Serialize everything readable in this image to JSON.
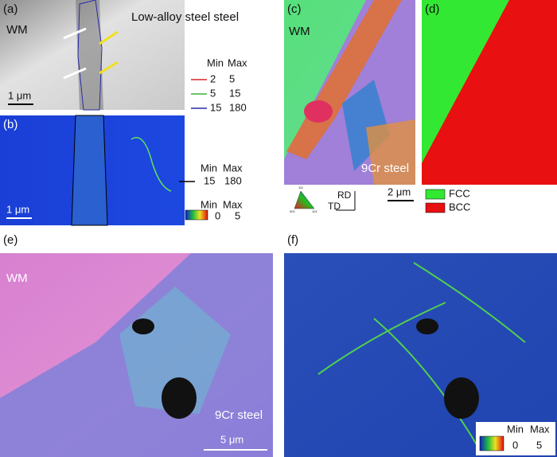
{
  "panel_a": {
    "label": "(a)",
    "region": "WM",
    "material": "Low-alloy steel steel",
    "scale_bar": "1 μm",
    "legend": {
      "min_header": "Min",
      "max_header": "Max",
      "rows": [
        {
          "min": 2,
          "max": 5,
          "color": "#d9262a"
        },
        {
          "min": 5,
          "max": 15,
          "color": "#3cb43c"
        },
        {
          "min": 15,
          "max": 180,
          "color": "#2a2aa8"
        }
      ]
    }
  },
  "panel_b": {
    "label": "(b)",
    "scale_bar": "1 μm",
    "legend": {
      "min_header": "Min",
      "max_header": "Max",
      "rows": [
        {
          "min": 15,
          "max": 180,
          "color": "#000000"
        }
      ]
    },
    "colorbar": {
      "min_header": "Min",
      "max_header": "Max",
      "min": 0,
      "max": 5
    }
  },
  "panel_c": {
    "label": "(c)",
    "region": "WM",
    "material": "9Cr steel",
    "scale_bar": "2 μm",
    "ipf": {
      "top": "111",
      "left": "001",
      "right": "101"
    },
    "axes": {
      "rd": "RD",
      "td": "TD"
    }
  },
  "panel_d": {
    "label": "(d)",
    "legend": [
      {
        "name": "FCC",
        "color": "#33e833"
      },
      {
        "name": "BCC",
        "color": "#e81010"
      }
    ]
  },
  "panel_e": {
    "label": "(e)",
    "region": "WM",
    "material": "9Cr steel",
    "scale_bar": "5 μm"
  },
  "panel_f": {
    "label": "(f)",
    "colorbar": {
      "min_header": "Min",
      "max_header": "Max",
      "min": 0,
      "max": 5
    }
  }
}
